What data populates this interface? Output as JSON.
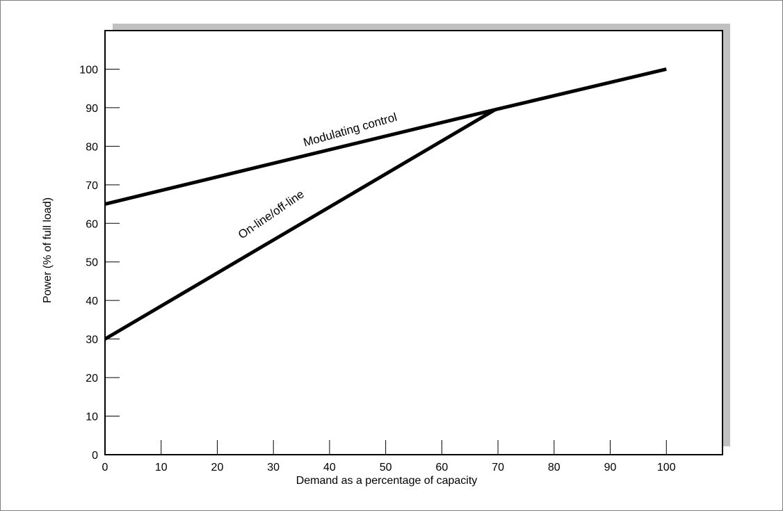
{
  "chart_data": {
    "type": "line",
    "title": "",
    "xlabel": "Demand as a percentage of capacity",
    "ylabel": "Power (% of full load)",
    "xlim": [
      0,
      110
    ],
    "ylim": [
      0,
      110
    ],
    "x_ticks": [
      0,
      10,
      20,
      30,
      40,
      50,
      60,
      70,
      80,
      90,
      100
    ],
    "y_ticks": [
      0,
      10,
      20,
      30,
      40,
      50,
      60,
      70,
      80,
      90,
      100
    ],
    "grid": false,
    "legend": "none",
    "series": [
      {
        "name": "Modulating control",
        "x": [
          0,
          69.5,
          100
        ],
        "y": [
          65,
          89.5,
          100
        ]
      },
      {
        "name": "On-line/off-line",
        "x": [
          0,
          69.5
        ],
        "y": [
          30,
          89.5
        ]
      }
    ],
    "colors": {
      "line": "#000000",
      "shadow": "#c0c0c0",
      "frame": "#808080"
    }
  }
}
